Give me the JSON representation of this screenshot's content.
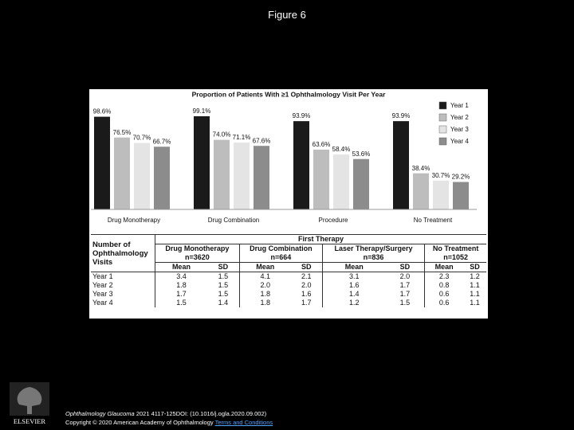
{
  "title": "Figure 6",
  "chart_data": {
    "type": "bar",
    "title": "Proportion of Patients With ≥1 Ophthalmology Visit Per Year",
    "categories": [
      "Drug Monotherapy",
      "Drug Combination",
      "Procedure",
      "No Treatment"
    ],
    "series": [
      {
        "name": "Year 1",
        "color": "#1a1a1a",
        "values": [
          98.6,
          99.1,
          93.9,
          93.9
        ],
        "value_labels": [
          "98.6%",
          "99.1%",
          "93.9%",
          "93.9%"
        ]
      },
      {
        "name": "Year 2",
        "color": "#bdbdbd",
        "values": [
          76.5,
          74.0,
          63.6,
          38.4
        ],
        "value_labels": [
          "76.5%",
          "74.0%",
          "63.6%",
          "38.4%"
        ]
      },
      {
        "name": "Year 3",
        "color": "#e4e4e4",
        "values": [
          70.7,
          71.1,
          58.4,
          30.7
        ],
        "value_labels": [
          "70.7%",
          "71.1%",
          "58.4%",
          "30.7%"
        ]
      },
      {
        "name": "Year 4",
        "color": "#8c8c8c",
        "values": [
          66.7,
          67.6,
          53.6,
          29.2
        ],
        "value_labels": [
          "66.7%",
          "67.6%",
          "53.6%",
          "29.2%"
        ]
      }
    ],
    "legend": "top-right"
  },
  "table": {
    "corner": "Number of Ophthalmology Visits",
    "group_title": "First Therapy",
    "groups": [
      {
        "name": "Drug Monotherapy",
        "n": "n=3620"
      },
      {
        "name": "Drug Combination",
        "n": "n=664"
      },
      {
        "name": "Laser Therapy/Surgery",
        "n": "n=836"
      },
      {
        "name": "No Treatment",
        "n": "n=1052"
      }
    ],
    "columns": [
      "Mean",
      "SD"
    ],
    "rows": [
      {
        "label": "Year 1",
        "values": [
          "3.4",
          "1.5",
          "4.1",
          "2.1",
          "3.1",
          "2.0",
          "2.3",
          "1.2"
        ]
      },
      {
        "label": "Year 2",
        "values": [
          "1.8",
          "1.5",
          "2.0",
          "2.0",
          "1.6",
          "1.7",
          "0.8",
          "1.1"
        ]
      },
      {
        "label": "Year 3",
        "values": [
          "1.7",
          "1.5",
          "1.8",
          "1.6",
          "1.4",
          "1.7",
          "0.6",
          "1.1"
        ]
      },
      {
        "label": "Year 4",
        "values": [
          "1.5",
          "1.4",
          "1.8",
          "1.7",
          "1.2",
          "1.5",
          "0.6",
          "1.1"
        ]
      }
    ]
  },
  "footer": {
    "journal": "Ophthalmology Glaucoma",
    "citation": "2021 4117-125DOI: (10.1016/j.ogla.2020.09.002)",
    "copyright": "Copyright © 2020 American Academy of Ophthalmology",
    "link": "Terms and Conditions"
  },
  "logo": "ELSEVIER"
}
